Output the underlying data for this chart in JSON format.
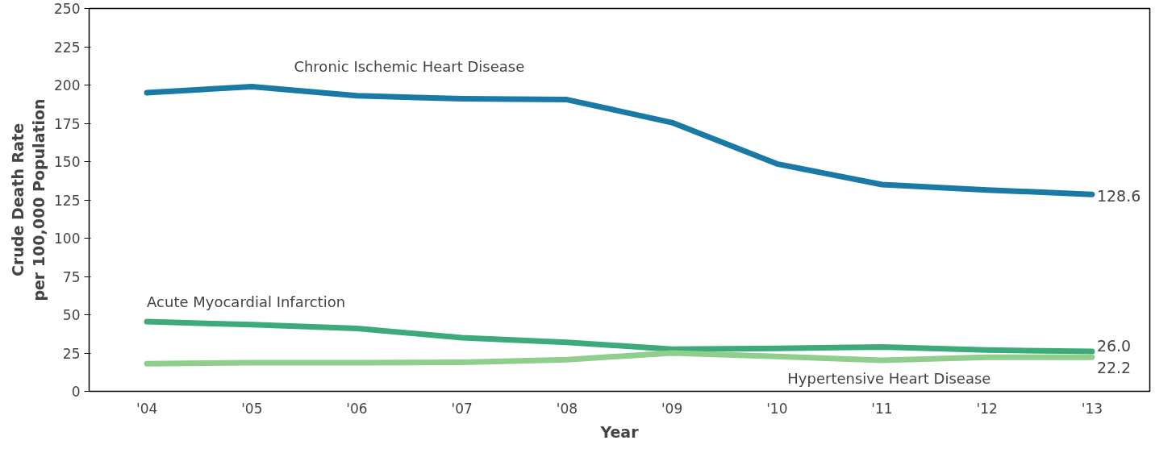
{
  "chart_data": {
    "type": "line",
    "xlabel": "Year",
    "ylabel": "Crude Death Rate\nper 100,000 Population",
    "categories": [
      "'04",
      "'05",
      "'06",
      "'07",
      "'08",
      "'09",
      "'10",
      "'11",
      "'12",
      "'13"
    ],
    "ylim": [
      0,
      250
    ],
    "yticks": [
      0,
      25,
      50,
      75,
      100,
      125,
      150,
      175,
      200,
      225,
      250
    ],
    "grid": false,
    "marker": "none",
    "line_style": "solid",
    "series": [
      {
        "name": "Chronic Ischemic Heart Disease",
        "color": "#1a7aa6",
        "values": [
          195,
          199,
          193,
          191,
          190.5,
          175.5,
          148.5,
          135,
          131.5,
          128.6
        ],
        "value_labels": [
          null,
          null,
          null,
          null,
          null,
          null,
          null,
          null,
          null,
          "128.6"
        ]
      },
      {
        "name": "Acute Myocardial Infarction",
        "color": "#3daa7a",
        "values": [
          45.5,
          43.5,
          41,
          35,
          32,
          27.5,
          28,
          29,
          27,
          26.0
        ],
        "value_labels": [
          null,
          null,
          null,
          null,
          null,
          null,
          null,
          null,
          null,
          "26.0"
        ]
      },
      {
        "name": "Hypertensive Heart Disease",
        "color": "#8fce8c",
        "values": [
          18,
          18.7,
          18.7,
          19,
          20.7,
          25,
          22.8,
          20.2,
          22.3,
          22.2
        ],
        "value_labels": [
          null,
          null,
          null,
          null,
          null,
          null,
          null,
          null,
          null,
          "22.2"
        ]
      }
    ]
  }
}
